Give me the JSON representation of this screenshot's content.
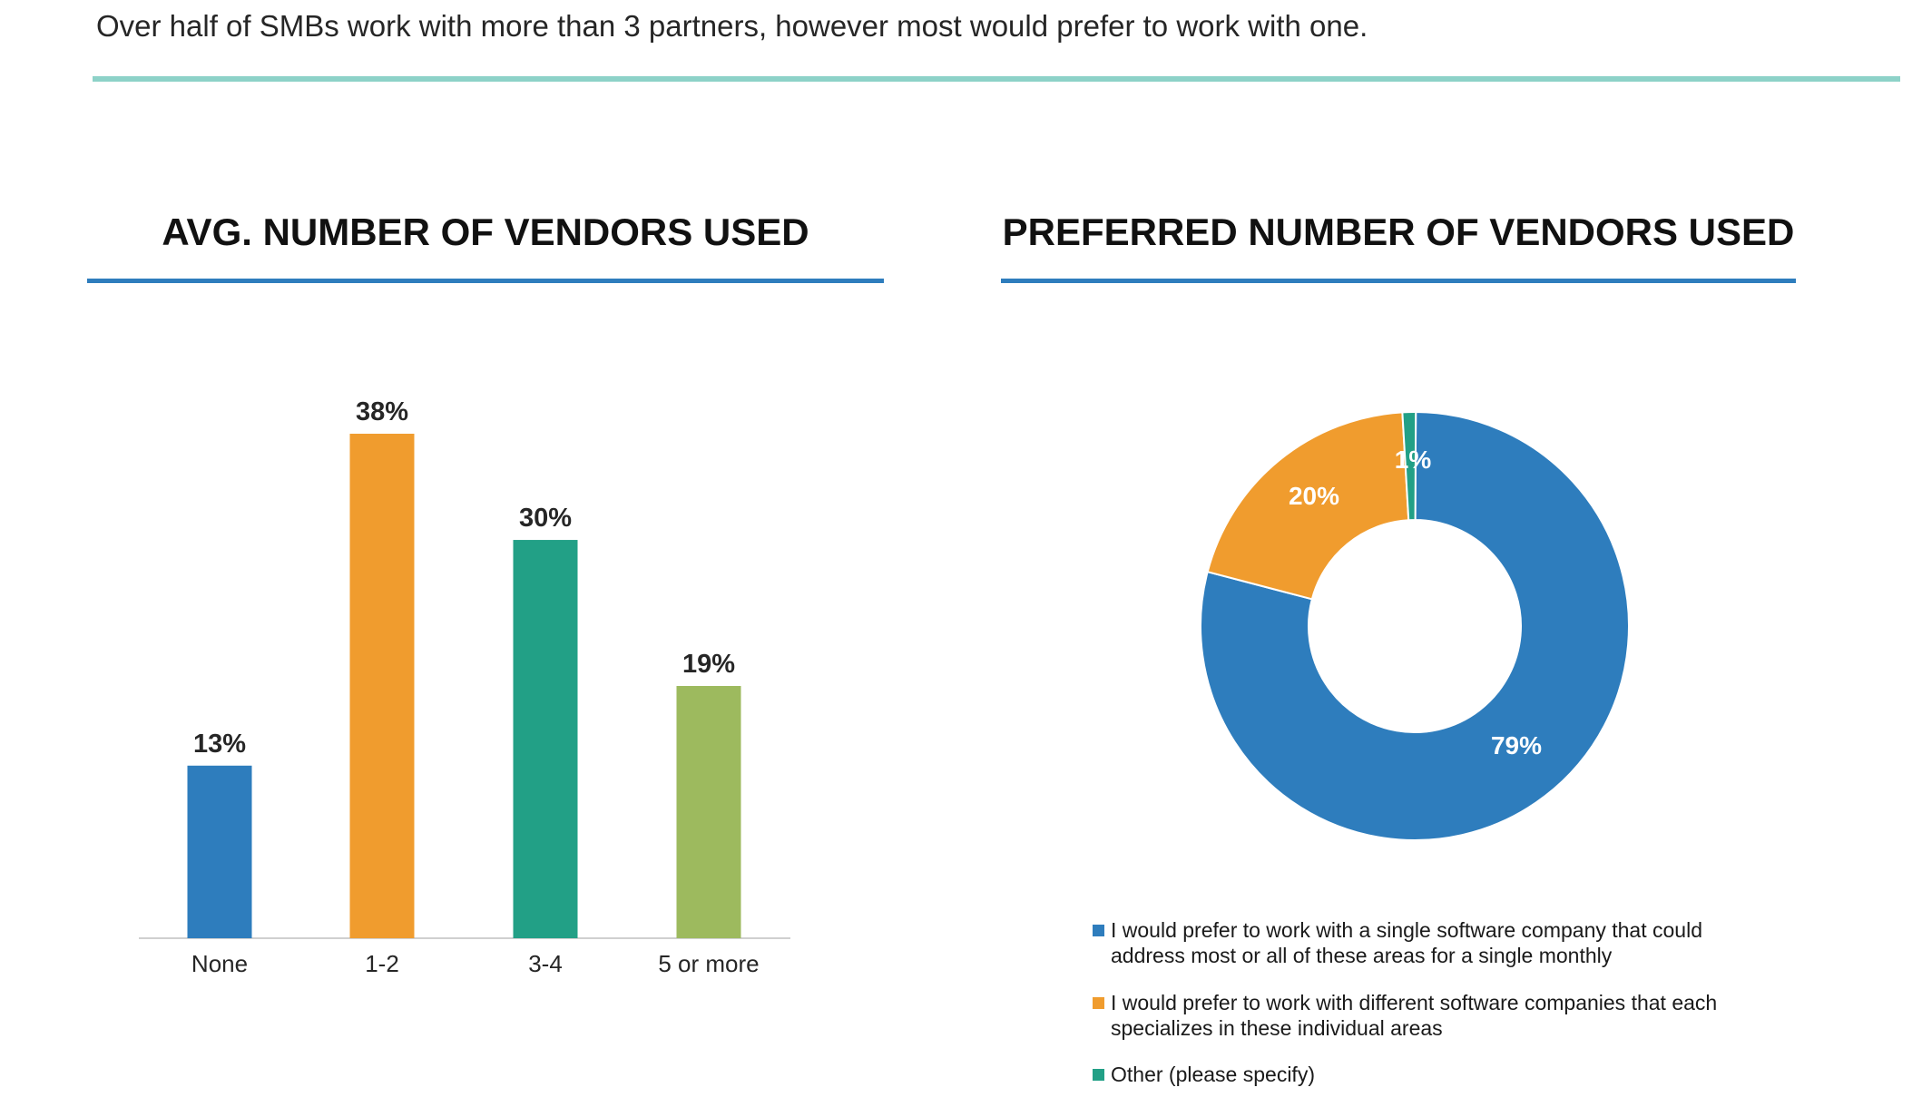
{
  "headline": "Over half of SMBs work with more than 3 partners, however most would prefer to work with one.",
  "colors": {
    "accent_rule": "#8dd2c8",
    "title_rule": "#2e7dbd"
  },
  "chart_data": [
    {
      "type": "bar",
      "title": "AVG. NUMBER OF VENDORS USED",
      "categories": [
        "None",
        "1-2",
        "3-4",
        "5 or more"
      ],
      "values": [
        13,
        38,
        30,
        19
      ],
      "value_labels": [
        "13%",
        "38%",
        "30%",
        "19%"
      ],
      "unit": "%",
      "colors": [
        "#2e7dbd",
        "#f09c2e",
        "#22a086",
        "#9dba5e"
      ],
      "ylim": [
        0,
        40
      ],
      "grid": false,
      "legend": "none"
    },
    {
      "type": "pie",
      "style": "donut",
      "title": "PREFERRED NUMBER OF VENDORS USED",
      "slices": [
        {
          "label": "I would prefer to work with a single software company that could address most or all of these areas for a single monthly",
          "value": 79,
          "value_label": "79%",
          "color": "#2e7dbd"
        },
        {
          "label": "I would prefer to work with different software companies that each specializes in these individual areas",
          "value": 20,
          "value_label": "20%",
          "color": "#f09c2e"
        },
        {
          "label": "Other (please specify)",
          "value": 1,
          "value_label": "1%",
          "color": "#22a086"
        }
      ],
      "legend": "bottom"
    }
  ]
}
